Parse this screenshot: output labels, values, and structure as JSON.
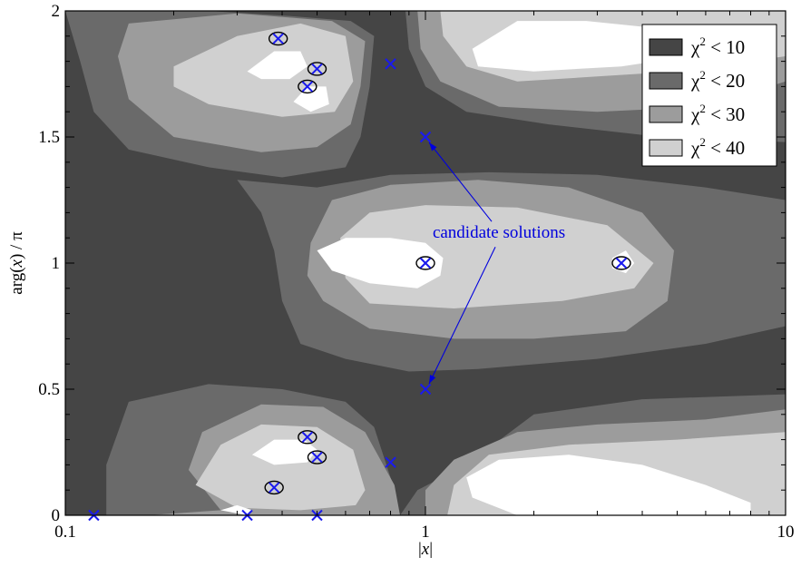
{
  "chart_data": {
    "type": "contour",
    "title": "",
    "xlabel_parts": [
      "|",
      "x",
      "|"
    ],
    "ylabel_parts": [
      "arg(",
      "x",
      ") / π"
    ],
    "xscale": "log",
    "xlim": [
      0.1,
      10
    ],
    "ylim": [
      0,
      2
    ],
    "xticks": [
      {
        "value": 0.1,
        "label": "0.1"
      },
      {
        "value": 1,
        "label": "1"
      },
      {
        "value": 10,
        "label": "10"
      }
    ],
    "yticks": [
      {
        "value": 0,
        "label": "0"
      },
      {
        "value": 0.5,
        "label": "0.5"
      },
      {
        "value": 1,
        "label": "1"
      },
      {
        "value": 1.5,
        "label": "1.5"
      },
      {
        "value": 2,
        "label": "2"
      }
    ],
    "background_color": "#454545",
    "legend": {
      "placement": "top-right",
      "entries": [
        {
          "label": "χ² < 10",
          "base": "χ",
          "exp": "2",
          "rest": " < 10",
          "color": "#454545"
        },
        {
          "label": "χ² < 20",
          "base": "χ",
          "exp": "2",
          "rest": " < 20",
          "color": "#6a6a6a"
        },
        {
          "label": "χ² < 30",
          "base": "χ",
          "exp": "2",
          "rest": " < 30",
          "color": "#9c9c9c"
        },
        {
          "label": "χ² < 40",
          "base": "χ",
          "exp": "2",
          "rest": " < 40",
          "color": "#d0d0d0"
        }
      ]
    },
    "regions": [
      {
        "level": "χ² < 20",
        "color": "#6a6a6a",
        "polygon": [
          [
            0.1,
            2
          ],
          [
            0.25,
            2
          ],
          [
            0.42,
            1.98
          ],
          [
            0.62,
            1.96
          ],
          [
            0.72,
            1.9
          ],
          [
            0.7,
            1.7
          ],
          [
            0.66,
            1.5
          ],
          [
            0.6,
            1.38
          ],
          [
            0.4,
            1.34
          ],
          [
            0.25,
            1.38
          ],
          [
            0.15,
            1.45
          ],
          [
            0.12,
            1.6
          ],
          [
            0.11,
            1.8
          ]
        ]
      },
      {
        "level": "χ² < 20",
        "color": "#6a6a6a",
        "polygon": [
          [
            0.88,
            2
          ],
          [
            10,
            2
          ],
          [
            10,
            1.48
          ],
          [
            4.5,
            1.5
          ],
          [
            2.2,
            1.55
          ],
          [
            1.3,
            1.6
          ],
          [
            1.0,
            1.7
          ],
          [
            0.9,
            1.85
          ]
        ]
      },
      {
        "level": "χ² < 20",
        "color": "#6a6a6a",
        "polygon": [
          [
            0.3,
            1.33
          ],
          [
            0.5,
            1.3
          ],
          [
            0.8,
            1.35
          ],
          [
            1.5,
            1.36
          ],
          [
            3,
            1.35
          ],
          [
            6,
            1.3
          ],
          [
            10,
            1.25
          ],
          [
            10,
            0.75
          ],
          [
            6,
            0.68
          ],
          [
            3,
            0.62
          ],
          [
            1.4,
            0.58
          ],
          [
            0.9,
            0.57
          ],
          [
            0.6,
            0.62
          ],
          [
            0.45,
            0.68
          ],
          [
            0.4,
            0.85
          ],
          [
            0.38,
            1.05
          ],
          [
            0.35,
            1.2
          ]
        ]
      },
      {
        "level": "χ² < 20",
        "color": "#6a6a6a",
        "polygon": [
          [
            0.13,
            0
          ],
          [
            0.85,
            0
          ],
          [
            0.95,
            0.1
          ],
          [
            1.3,
            0.2
          ],
          [
            2,
            0.4
          ],
          [
            4,
            0.46
          ],
          [
            10,
            0.48
          ],
          [
            10,
            0
          ],
          [
            0.85,
            0
          ],
          [
            0.8,
            0.15
          ],
          [
            0.72,
            0.35
          ],
          [
            0.6,
            0.45
          ],
          [
            0.4,
            0.5
          ],
          [
            0.25,
            0.52
          ],
          [
            0.15,
            0.45
          ],
          [
            0.13,
            0.2
          ]
        ]
      },
      {
        "level": "χ² < 30",
        "color": "#9c9c9c",
        "polygon": [
          [
            0.15,
            1.95
          ],
          [
            0.3,
            1.99
          ],
          [
            0.55,
            1.96
          ],
          [
            0.68,
            1.88
          ],
          [
            0.66,
            1.7
          ],
          [
            0.62,
            1.55
          ],
          [
            0.5,
            1.46
          ],
          [
            0.35,
            1.44
          ],
          [
            0.2,
            1.5
          ],
          [
            0.15,
            1.65
          ],
          [
            0.14,
            1.82
          ]
        ]
      },
      {
        "level": "χ² < 30",
        "color": "#9c9c9c",
        "polygon": [
          [
            0.95,
            2
          ],
          [
            10,
            2
          ],
          [
            10,
            1.72
          ],
          [
            6,
            1.62
          ],
          [
            3,
            1.6
          ],
          [
            1.6,
            1.62
          ],
          [
            1.1,
            1.72
          ],
          [
            0.97,
            1.85
          ]
        ]
      },
      {
        "level": "χ² < 30",
        "color": "#9c9c9c",
        "polygon": [
          [
            0.48,
            1.08
          ],
          [
            0.55,
            1.25
          ],
          [
            0.8,
            1.31
          ],
          [
            1.4,
            1.33
          ],
          [
            2.5,
            1.3
          ],
          [
            4,
            1.2
          ],
          [
            4.9,
            1.05
          ],
          [
            4.7,
            0.85
          ],
          [
            3.6,
            0.73
          ],
          [
            2,
            0.7
          ],
          [
            1.2,
            0.7
          ],
          [
            0.7,
            0.74
          ],
          [
            0.52,
            0.85
          ],
          [
            0.47,
            0.95
          ]
        ]
      },
      {
        "level": "χ² < 30",
        "color": "#9c9c9c",
        "polygon": [
          [
            0.17,
            0
          ],
          [
            0.27,
            0.02
          ],
          [
            0.22,
            0.18
          ],
          [
            0.24,
            0.33
          ],
          [
            0.35,
            0.44
          ],
          [
            0.52,
            0.43
          ],
          [
            0.68,
            0.33
          ],
          [
            0.82,
            0.12
          ],
          [
            0.85,
            0
          ]
        ]
      },
      {
        "level": "χ² < 30",
        "color": "#9c9c9c",
        "polygon": [
          [
            1.0,
            0
          ],
          [
            10,
            0
          ],
          [
            10,
            0.42
          ],
          [
            6,
            0.38
          ],
          [
            3,
            0.36
          ],
          [
            1.8,
            0.33
          ],
          [
            1.2,
            0.22
          ],
          [
            1.0,
            0.1
          ]
        ]
      },
      {
        "level": "χ² < 40",
        "color": "#d0d0d0",
        "polygon": [
          [
            0.2,
            1.78
          ],
          [
            0.3,
            1.9
          ],
          [
            0.45,
            1.95
          ],
          [
            0.6,
            1.9
          ],
          [
            0.63,
            1.72
          ],
          [
            0.56,
            1.6
          ],
          [
            0.4,
            1.58
          ],
          [
            0.25,
            1.63
          ],
          [
            0.2,
            1.7
          ]
        ]
      },
      {
        "level": "χ² < 40",
        "color": "#d0d0d0",
        "polygon": [
          [
            1.1,
            2
          ],
          [
            10,
            2
          ],
          [
            10,
            1.82
          ],
          [
            5,
            1.76
          ],
          [
            3,
            1.74
          ],
          [
            1.8,
            1.72
          ],
          [
            1.3,
            1.78
          ],
          [
            1.12,
            1.9
          ]
        ]
      },
      {
        "level": "χ² < 40",
        "color": "#d0d0d0",
        "polygon": [
          [
            0.58,
            1.1
          ],
          [
            0.7,
            1.2
          ],
          [
            1.0,
            1.23
          ],
          [
            1.8,
            1.22
          ],
          [
            3.2,
            1.15
          ],
          [
            4.3,
            1.0
          ],
          [
            3.8,
            0.9
          ],
          [
            2.4,
            0.85
          ],
          [
            1.2,
            0.82
          ],
          [
            0.7,
            0.84
          ],
          [
            0.6,
            0.94
          ]
        ]
      },
      {
        "level": "χ² < 40",
        "color": "#d0d0d0",
        "polygon": [
          [
            0.23,
            0.12
          ],
          [
            0.27,
            0.28
          ],
          [
            0.35,
            0.36
          ],
          [
            0.5,
            0.35
          ],
          [
            0.63,
            0.26
          ],
          [
            0.68,
            0.1
          ],
          [
            0.64,
            0.04
          ],
          [
            0.45,
            0.02
          ],
          [
            0.3,
            0.03
          ]
        ]
      },
      {
        "level": "χ² < 40",
        "color": "#d0d0d0",
        "polygon": [
          [
            1.15,
            0
          ],
          [
            10,
            0
          ],
          [
            10,
            0.33
          ],
          [
            5,
            0.3
          ],
          [
            2.5,
            0.28
          ],
          [
            1.5,
            0.24
          ],
          [
            1.2,
            0.12
          ]
        ]
      },
      {
        "level": "white",
        "color": "#ffffff",
        "polygon": [
          [
            0.5,
            1.05
          ],
          [
            0.6,
            1.1
          ],
          [
            0.8,
            1.1
          ],
          [
            1.0,
            1.08
          ],
          [
            1.12,
            1.02
          ],
          [
            1.1,
            0.95
          ],
          [
            0.95,
            0.9
          ],
          [
            0.7,
            0.92
          ],
          [
            0.55,
            0.97
          ]
        ]
      },
      {
        "level": "white",
        "color": "#ffffff",
        "polygon": [
          [
            3.3,
            1.02
          ],
          [
            3.6,
            1.05
          ],
          [
            3.8,
            1.0
          ],
          [
            3.6,
            0.96
          ],
          [
            3.3,
            0.98
          ]
        ]
      },
      {
        "level": "white",
        "color": "#ffffff",
        "polygon": [
          [
            1.35,
            1.85
          ],
          [
            1.8,
            1.96
          ],
          [
            2.8,
            1.96
          ],
          [
            4.5,
            1.93
          ],
          [
            7,
            1.88
          ],
          [
            6,
            1.83
          ],
          [
            3.5,
            1.78
          ],
          [
            2,
            1.76
          ],
          [
            1.4,
            1.78
          ]
        ]
      },
      {
        "level": "white",
        "color": "#ffffff",
        "polygon": [
          [
            1.3,
            0.15
          ],
          [
            1.6,
            0.22
          ],
          [
            2.5,
            0.24
          ],
          [
            4,
            0.2
          ],
          [
            6,
            0.12
          ],
          [
            8,
            0.05
          ],
          [
            8,
            0
          ],
          [
            1.8,
            0
          ],
          [
            1.35,
            0.07
          ]
        ]
      },
      {
        "level": "white",
        "color": "#ffffff",
        "polygon": [
          [
            0.33,
            0.24
          ],
          [
            0.38,
            0.3
          ],
          [
            0.46,
            0.3
          ],
          [
            0.5,
            0.26
          ],
          [
            0.47,
            0.21
          ],
          [
            0.38,
            0.2
          ]
        ]
      },
      {
        "level": "white",
        "color": "#ffffff",
        "polygon": [
          [
            0.32,
            1.76
          ],
          [
            0.38,
            1.84
          ],
          [
            0.45,
            1.84
          ],
          [
            0.47,
            1.78
          ],
          [
            0.42,
            1.73
          ],
          [
            0.35,
            1.73
          ]
        ]
      },
      {
        "level": "white",
        "color": "#ffffff",
        "polygon": [
          [
            0.43,
            1.64
          ],
          [
            0.47,
            1.7
          ],
          [
            0.53,
            1.7
          ],
          [
            0.54,
            1.63
          ],
          [
            0.48,
            1.6
          ]
        ]
      },
      {
        "level": "white",
        "color": "#ffffff",
        "polygon": [
          [
            0.27,
            0.02
          ],
          [
            0.3,
            0.04
          ],
          [
            0.33,
            0.02
          ],
          [
            0.32,
            0
          ]
        ]
      }
    ],
    "markers": [
      {
        "x": 0.39,
        "y": 1.89
      },
      {
        "x": 0.5,
        "y": 1.77
      },
      {
        "x": 0.47,
        "y": 1.7
      },
      {
        "x": 0.8,
        "y": 1.79
      },
      {
        "x": 1.0,
        "y": 1.5
      },
      {
        "x": 1.0,
        "y": 1.0
      },
      {
        "x": 3.5,
        "y": 1.0
      },
      {
        "x": 1.0,
        "y": 0.5
      },
      {
        "x": 0.47,
        "y": 0.31
      },
      {
        "x": 0.5,
        "y": 0.23
      },
      {
        "x": 0.8,
        "y": 0.21
      },
      {
        "x": 0.38,
        "y": 0.11
      },
      {
        "x": 0.12,
        "y": 0.0
      },
      {
        "x": 0.32,
        "y": 0.0
      },
      {
        "x": 0.5,
        "y": 0.0
      }
    ],
    "ellipses": [
      {
        "x": 0.39,
        "y": 1.89
      },
      {
        "x": 0.5,
        "y": 1.77
      },
      {
        "x": 0.47,
        "y": 1.7
      },
      {
        "x": 1.0,
        "y": 1.0
      },
      {
        "x": 3.5,
        "y": 1.0
      },
      {
        "x": 0.47,
        "y": 0.31
      },
      {
        "x": 0.5,
        "y": 0.23
      },
      {
        "x": 0.38,
        "y": 0.11
      }
    ],
    "annotation": {
      "text": "candidate solutions",
      "color": "#0000dd",
      "anchor": {
        "x": 1.6,
        "y": 1.1
      },
      "arrows_to": [
        {
          "x": 1.0,
          "y": 1.5
        },
        {
          "x": 1.0,
          "y": 0.5
        }
      ]
    }
  }
}
